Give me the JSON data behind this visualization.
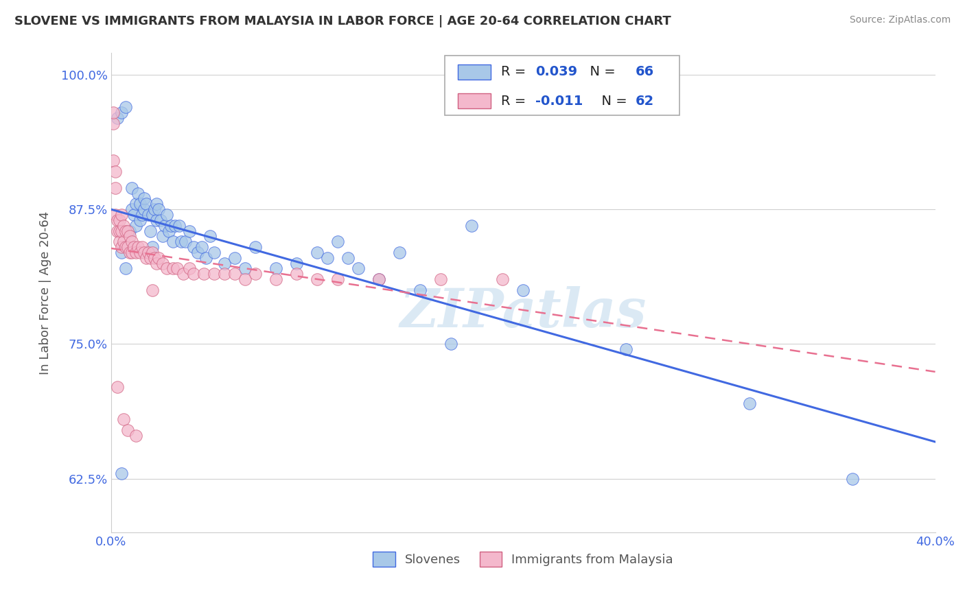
{
  "title": "SLOVENE VS IMMIGRANTS FROM MALAYSIA IN LABOR FORCE | AGE 20-64 CORRELATION CHART",
  "source": "Source: ZipAtlas.com",
  "ylabel": "In Labor Force | Age 20-64",
  "xlim": [
    0.0,
    0.4
  ],
  "ylim": [
    0.575,
    1.02
  ],
  "yticks": [
    0.625,
    0.75,
    0.875,
    1.0
  ],
  "ytick_labels": [
    "62.5%",
    "75.0%",
    "87.5%",
    "100.0%"
  ],
  "xticks": [
    0.0,
    0.1,
    0.2,
    0.3,
    0.4
  ],
  "xtick_labels": [
    "0.0%",
    "",
    "",
    "",
    "40.0%"
  ],
  "blue_color": "#a8c8e8",
  "pink_color": "#f4b8cc",
  "trendline_blue": "#4169E1",
  "trendline_pink": "#e87090",
  "blue_scatter_x": [
    0.003,
    0.005,
    0.005,
    0.007,
    0.007,
    0.008,
    0.009,
    0.01,
    0.01,
    0.011,
    0.012,
    0.012,
    0.013,
    0.014,
    0.014,
    0.015,
    0.016,
    0.016,
    0.017,
    0.018,
    0.019,
    0.02,
    0.02,
    0.021,
    0.022,
    0.022,
    0.023,
    0.024,
    0.025,
    0.026,
    0.027,
    0.028,
    0.029,
    0.03,
    0.031,
    0.033,
    0.034,
    0.036,
    0.038,
    0.04,
    0.042,
    0.044,
    0.046,
    0.048,
    0.05,
    0.055,
    0.06,
    0.065,
    0.07,
    0.08,
    0.09,
    0.1,
    0.105,
    0.11,
    0.115,
    0.12,
    0.13,
    0.14,
    0.15,
    0.165,
    0.175,
    0.2,
    0.25,
    0.31,
    0.36,
    0.005
  ],
  "blue_scatter_y": [
    0.96,
    0.965,
    0.835,
    0.97,
    0.82,
    0.84,
    0.855,
    0.875,
    0.895,
    0.87,
    0.88,
    0.86,
    0.89,
    0.88,
    0.865,
    0.87,
    0.875,
    0.885,
    0.88,
    0.87,
    0.855,
    0.87,
    0.84,
    0.875,
    0.865,
    0.88,
    0.875,
    0.865,
    0.85,
    0.86,
    0.87,
    0.855,
    0.86,
    0.845,
    0.86,
    0.86,
    0.845,
    0.845,
    0.855,
    0.84,
    0.835,
    0.84,
    0.83,
    0.85,
    0.835,
    0.825,
    0.83,
    0.82,
    0.84,
    0.82,
    0.825,
    0.835,
    0.83,
    0.845,
    0.83,
    0.82,
    0.81,
    0.835,
    0.8,
    0.75,
    0.86,
    0.8,
    0.745,
    0.695,
    0.625,
    0.63
  ],
  "pink_scatter_x": [
    0.001,
    0.001,
    0.002,
    0.002,
    0.002,
    0.003,
    0.003,
    0.004,
    0.004,
    0.004,
    0.005,
    0.005,
    0.005,
    0.006,
    0.006,
    0.007,
    0.007,
    0.008,
    0.008,
    0.009,
    0.009,
    0.01,
    0.01,
    0.011,
    0.012,
    0.013,
    0.014,
    0.015,
    0.016,
    0.017,
    0.018,
    0.019,
    0.02,
    0.021,
    0.022,
    0.023,
    0.025,
    0.027,
    0.03,
    0.032,
    0.035,
    0.038,
    0.04,
    0.045,
    0.05,
    0.055,
    0.06,
    0.065,
    0.07,
    0.08,
    0.09,
    0.1,
    0.11,
    0.13,
    0.16,
    0.19,
    0.001,
    0.003,
    0.006,
    0.008,
    0.012,
    0.02
  ],
  "pink_scatter_y": [
    0.955,
    0.92,
    0.91,
    0.895,
    0.87,
    0.865,
    0.855,
    0.865,
    0.855,
    0.845,
    0.87,
    0.855,
    0.84,
    0.86,
    0.845,
    0.855,
    0.84,
    0.855,
    0.84,
    0.85,
    0.835,
    0.845,
    0.835,
    0.84,
    0.835,
    0.84,
    0.835,
    0.84,
    0.835,
    0.83,
    0.835,
    0.83,
    0.835,
    0.83,
    0.825,
    0.83,
    0.825,
    0.82,
    0.82,
    0.82,
    0.815,
    0.82,
    0.815,
    0.815,
    0.815,
    0.815,
    0.815,
    0.81,
    0.815,
    0.81,
    0.815,
    0.81,
    0.81,
    0.81,
    0.81,
    0.81,
    0.965,
    0.71,
    0.68,
    0.67,
    0.665,
    0.8
  ]
}
